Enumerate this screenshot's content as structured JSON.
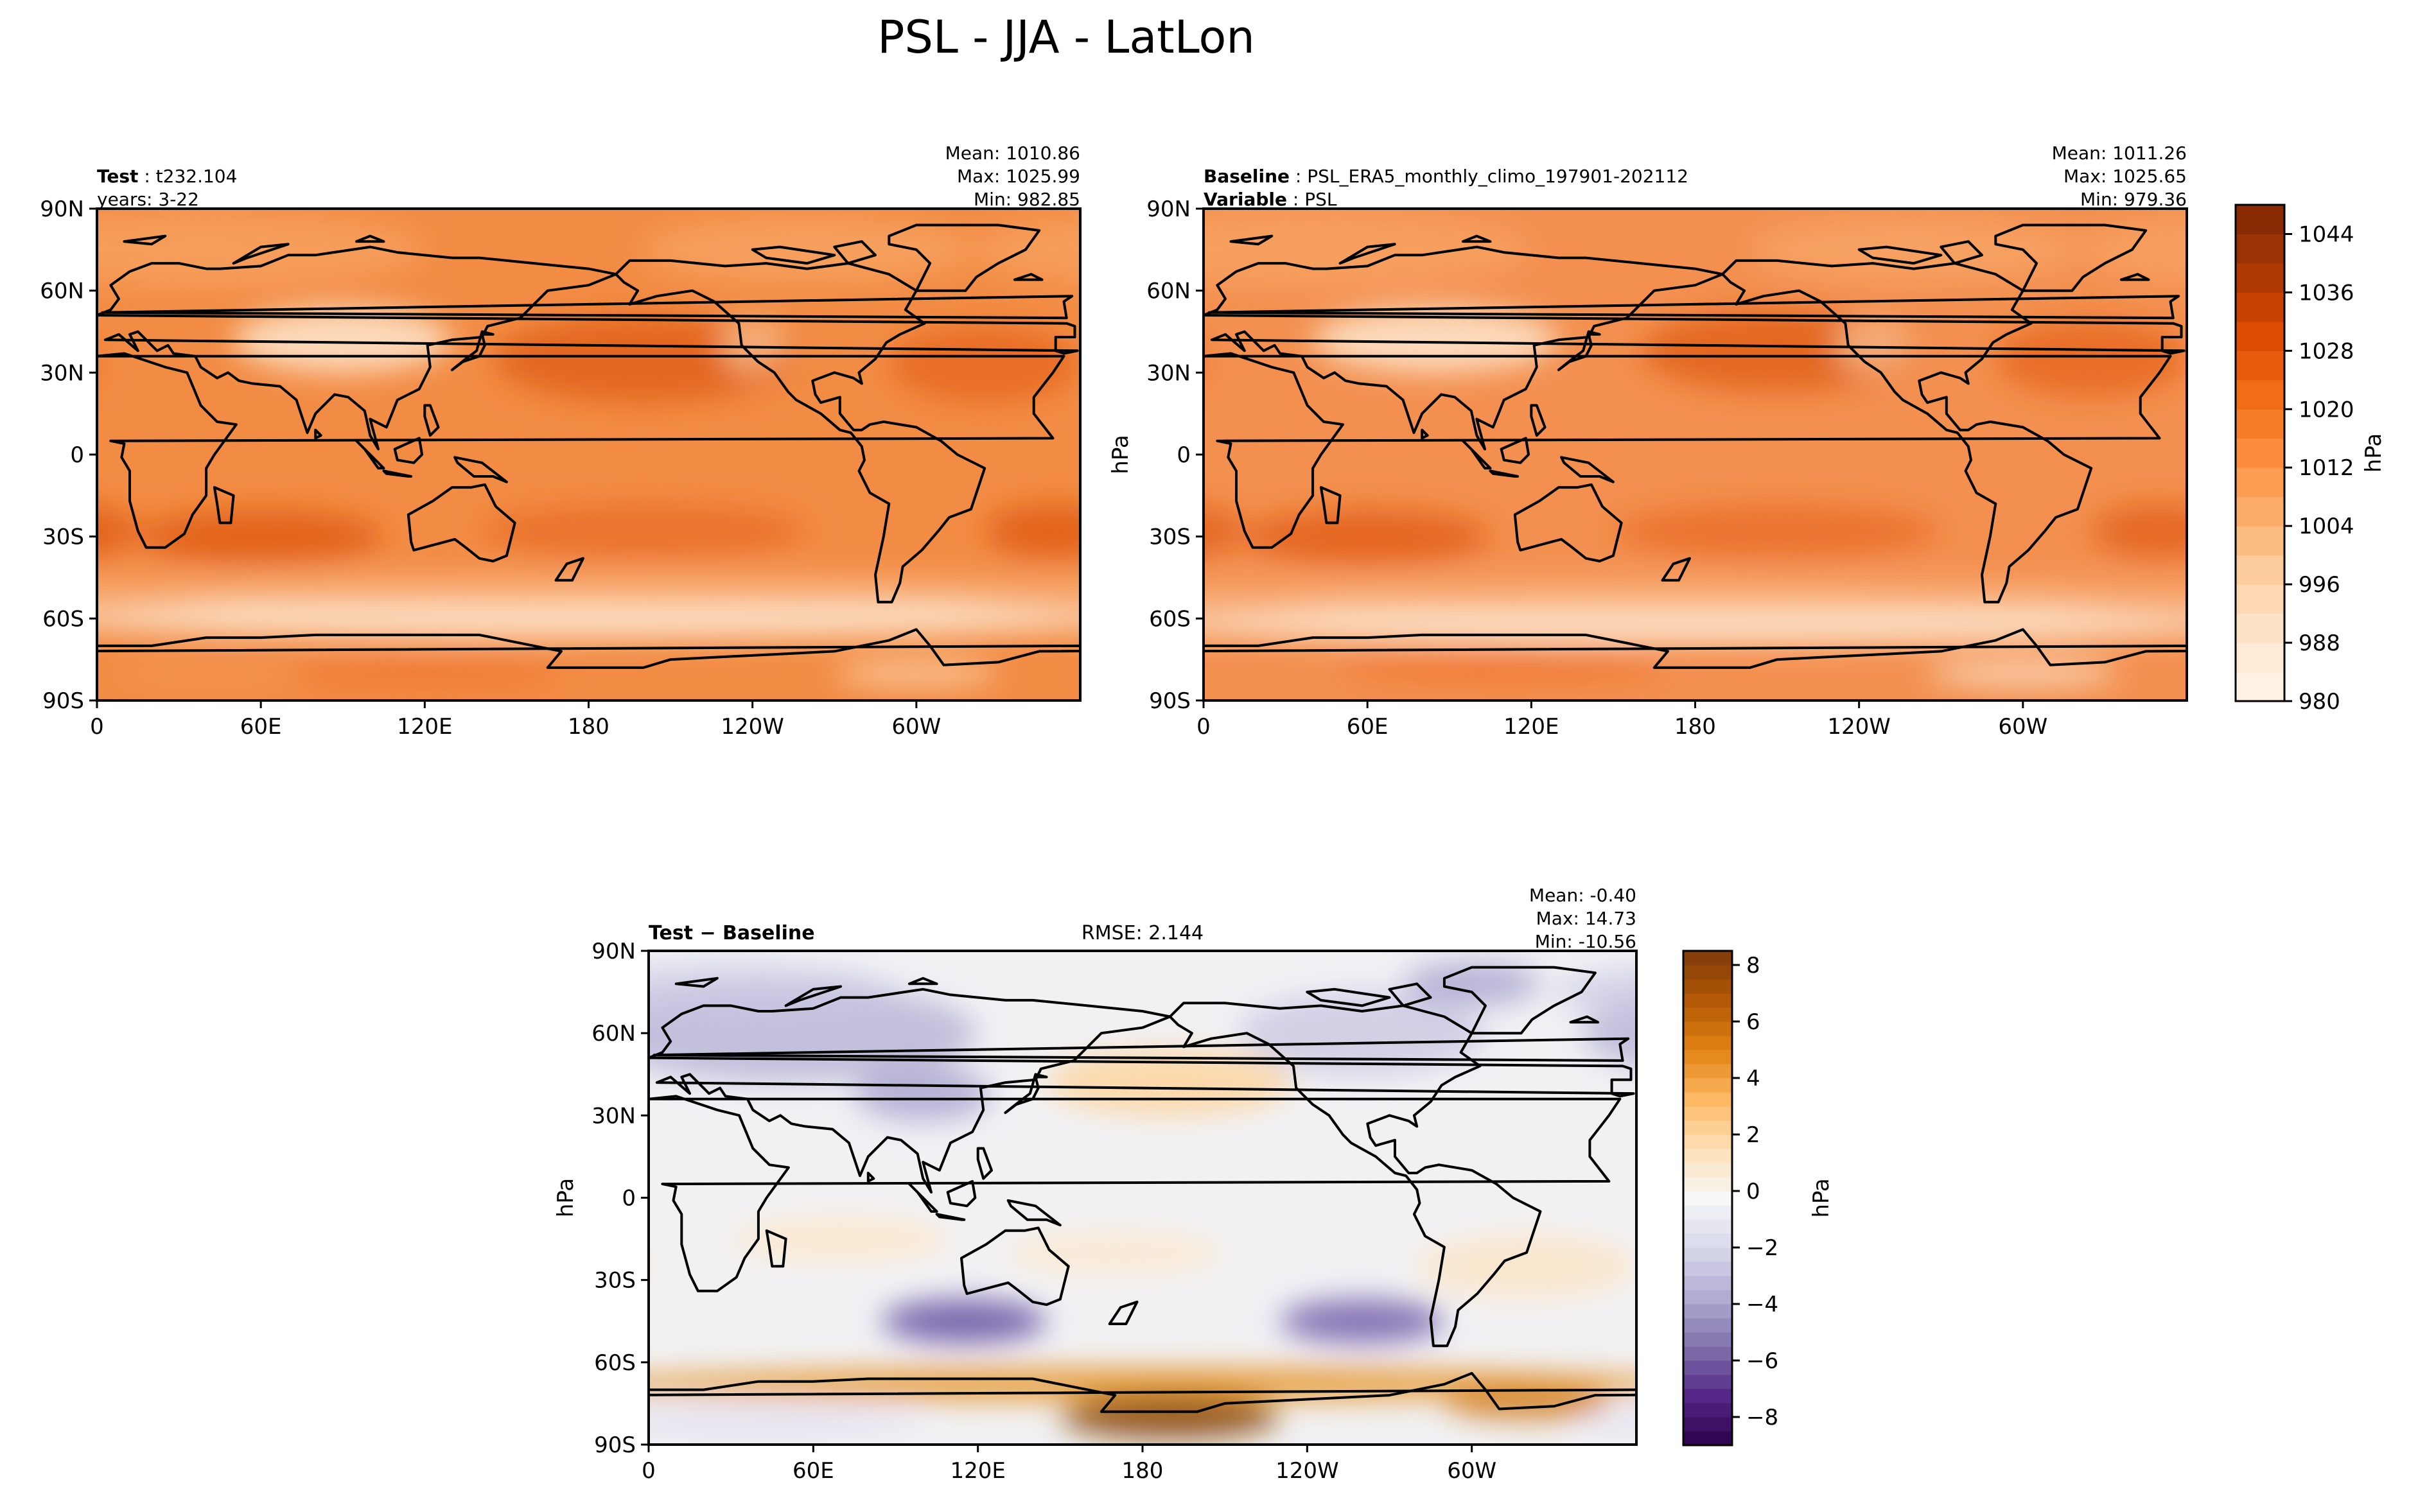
{
  "figure": {
    "title": "PSL - JJA - LatLon"
  },
  "colors": {
    "test_base": "#f28c45",
    "baseline_base": "#f39050",
    "oranges_cmap": [
      "#fff5eb",
      "#fee6ce",
      "#fdd0a2",
      "#fdae6b",
      "#fd8d3c",
      "#f16913",
      "#d94801",
      "#a63603",
      "#7f2704"
    ],
    "diff_cmap": [
      "#2d004b",
      "#542788",
      "#8073ac",
      "#b2abd2",
      "#d8daeb",
      "#f7f7f7",
      "#fee0b6",
      "#fdb863",
      "#e08214",
      "#b35806",
      "#7f3b08"
    ]
  },
  "chart_data": [
    {
      "id": "test",
      "type": "heatmap",
      "left_label_bold": "Test",
      "left_label_value": "t232.104",
      "left_label_line2": "years: 3-22",
      "stats": [
        "Mean: 1010.86",
        "Max: 1025.99",
        "Min: 982.85"
      ],
      "yticks": [
        "90N",
        "60N",
        "30N",
        "0",
        "30S",
        "60S",
        "90S"
      ],
      "xticks": [
        "0",
        "60E",
        "120E",
        "180",
        "120W",
        "60W"
      ],
      "blobs": [
        {
          "lon": 200,
          "lat": 35,
          "rx": 55,
          "ry": 16,
          "c": "#e2601a",
          "o": 0.85
        },
        {
          "lon": 325,
          "lat": 33,
          "rx": 35,
          "ry": 14,
          "c": "#e8691f",
          "o": 0.85
        },
        {
          "lon": 60,
          "lat": -30,
          "rx": 45,
          "ry": 10,
          "c": "#e05a14",
          "o": 0.8
        },
        {
          "lon": 200,
          "lat": -28,
          "rx": 60,
          "ry": 10,
          "c": "#e86a22",
          "o": 0.7
        },
        {
          "lon": 350,
          "lat": -28,
          "rx": 25,
          "ry": 10,
          "c": "#e05a14",
          "o": 0.8
        },
        {
          "lon": 90,
          "lat": 42,
          "rx": 40,
          "ry": 12,
          "c": "#fde2c6",
          "o": 0.9
        },
        {
          "lon": 240,
          "lat": 40,
          "rx": 12,
          "ry": 10,
          "c": "#fbc79a",
          "o": 0.7
        },
        {
          "lon": 180,
          "lat": -60,
          "rx": 200,
          "ry": 7,
          "c": "#fde7d0",
          "o": 0.95
        },
        {
          "lon": 180,
          "lat": -50,
          "rx": 200,
          "ry": 6,
          "c": "#fbb987",
          "o": 0.7
        },
        {
          "lon": 120,
          "lat": -80,
          "rx": 50,
          "ry": 6,
          "c": "#f07c35",
          "o": 0.9
        },
        {
          "lon": 40,
          "lat": -80,
          "rx": 35,
          "ry": 5,
          "c": "#f5954f",
          "o": 0.8
        },
        {
          "lon": 300,
          "lat": -80,
          "rx": 30,
          "ry": 5,
          "c": "#fdd0a5",
          "o": 0.8
        },
        {
          "lon": 40,
          "lat": 75,
          "rx": 80,
          "ry": 14,
          "c": "#f9a868",
          "o": 0.6
        },
        {
          "lon": 260,
          "lat": 75,
          "rx": 60,
          "ry": 12,
          "c": "#f9ab6c",
          "o": 0.6
        }
      ]
    },
    {
      "id": "baseline",
      "type": "heatmap",
      "left_label_bold": "Baseline",
      "left_label_value": "PSL_ERA5_monthly_climo_197901-202112",
      "left_label_bold2": "Variable",
      "left_label_value2": "PSL",
      "stats": [
        "Mean: 1011.26",
        "Max: 1025.65",
        "Min: 979.36"
      ],
      "yticks": [
        "90N",
        "60N",
        "30N",
        "0",
        "30S",
        "60S",
        "90S"
      ],
      "xticks": [
        "0",
        "60E",
        "120E",
        "180",
        "120W",
        "60W"
      ],
      "ylabel": "hPa",
      "blobs": [
        {
          "lon": 210,
          "lat": 38,
          "rx": 50,
          "ry": 15,
          "c": "#e2601a",
          "o": 0.85
        },
        {
          "lon": 325,
          "lat": 35,
          "rx": 35,
          "ry": 14,
          "c": "#e8691f",
          "o": 0.85
        },
        {
          "lon": 60,
          "lat": -30,
          "rx": 45,
          "ry": 10,
          "c": "#e05a14",
          "o": 0.75
        },
        {
          "lon": 210,
          "lat": -28,
          "rx": 60,
          "ry": 10,
          "c": "#e86a22",
          "o": 0.7
        },
        {
          "lon": 350,
          "lat": -28,
          "rx": 25,
          "ry": 10,
          "c": "#e05a14",
          "o": 0.7
        },
        {
          "lon": 85,
          "lat": 42,
          "rx": 45,
          "ry": 12,
          "c": "#fde2c6",
          "o": 0.9
        },
        {
          "lon": 245,
          "lat": 40,
          "rx": 14,
          "ry": 10,
          "c": "#fbc79a",
          "o": 0.7
        },
        {
          "lon": 180,
          "lat": -62,
          "rx": 200,
          "ry": 7,
          "c": "#fde7d0",
          "o": 0.95
        },
        {
          "lon": 180,
          "lat": -52,
          "rx": 200,
          "ry": 6,
          "c": "#fbb987",
          "o": 0.7
        },
        {
          "lon": 110,
          "lat": -78,
          "rx": 60,
          "ry": 6,
          "c": "#f07c35",
          "o": 0.9
        },
        {
          "lon": 300,
          "lat": -80,
          "rx": 35,
          "ry": 5,
          "c": "#fde0c5",
          "o": 0.8
        },
        {
          "lon": 40,
          "lat": 75,
          "rx": 80,
          "ry": 14,
          "c": "#f9a868",
          "o": 0.6
        },
        {
          "lon": 260,
          "lat": 75,
          "rx": 60,
          "ry": 12,
          "c": "#f9ab6c",
          "o": 0.6
        }
      ]
    },
    {
      "id": "diff",
      "type": "heatmap",
      "left_label_bold": "Test − Baseline",
      "center_label": "RMSE: 2.144",
      "stats": [
        "Mean: -0.40",
        "Max: 14.73",
        "Min: -10.56"
      ],
      "yticks": [
        "90N",
        "60N",
        "30N",
        "0",
        "30S",
        "60S",
        "90S"
      ],
      "xticks": [
        "0",
        "60E",
        "120E",
        "180",
        "120W",
        "60W"
      ],
      "ylabel": "hPa",
      "blobs": [
        {
          "lon": 50,
          "lat": 60,
          "rx": 70,
          "ry": 18,
          "c": "#b7b3d6",
          "o": 0.8
        },
        {
          "lon": 30,
          "lat": 75,
          "rx": 60,
          "ry": 10,
          "c": "#c9c6e2",
          "o": 0.7
        },
        {
          "lon": 260,
          "lat": 60,
          "rx": 45,
          "ry": 15,
          "c": "#c6c2e0",
          "o": 0.7
        },
        {
          "lon": 300,
          "lat": 78,
          "rx": 25,
          "ry": 8,
          "c": "#a9a4cf",
          "o": 0.8
        },
        {
          "lon": 100,
          "lat": 38,
          "rx": 25,
          "ry": 10,
          "c": "#a9a4cf",
          "o": 0.8
        },
        {
          "lon": 190,
          "lat": 42,
          "rx": 45,
          "ry": 12,
          "c": "#fdd6a3",
          "o": 0.9
        },
        {
          "lon": 70,
          "lat": -15,
          "rx": 40,
          "ry": 8,
          "c": "#fee7c8",
          "o": 0.8
        },
        {
          "lon": 170,
          "lat": -20,
          "rx": 40,
          "ry": 8,
          "c": "#fee7c8",
          "o": 0.7
        },
        {
          "lon": 115,
          "lat": -45,
          "rx": 30,
          "ry": 8,
          "c": "#6d5aa6",
          "o": 0.9
        },
        {
          "lon": 260,
          "lat": -45,
          "rx": 30,
          "ry": 8,
          "c": "#7a67ae",
          "o": 0.9
        },
        {
          "lon": 320,
          "lat": -25,
          "rx": 40,
          "ry": 12,
          "c": "#fde3bf",
          "o": 0.7
        },
        {
          "lon": 180,
          "lat": -68,
          "rx": 200,
          "ry": 6,
          "c": "#e6962e",
          "o": 0.9
        },
        {
          "lon": 190,
          "lat": -80,
          "rx": 40,
          "ry": 8,
          "c": "#8c4a0e",
          "o": 0.9
        },
        {
          "lon": 320,
          "lat": -75,
          "rx": 30,
          "ry": 6,
          "c": "#d07818",
          "o": 0.8
        },
        {
          "lon": 40,
          "lat": -82,
          "rx": 60,
          "ry": 5,
          "c": "#e3e1f0",
          "o": 0.9
        }
      ]
    }
  ],
  "colorbar_top": {
    "ticks": [
      "1044",
      "1036",
      "1028",
      "1020",
      "1012",
      "1004",
      "996",
      "988",
      "980"
    ],
    "tick_values": [
      1044,
      1036,
      1028,
      1020,
      1012,
      1004,
      996,
      988,
      980
    ],
    "range": [
      980,
      1048
    ],
    "label": "hPa",
    "levels": 17
  },
  "colorbar_diff": {
    "ticks": [
      "8",
      "6",
      "4",
      "2",
      "0",
      "−2",
      "−4",
      "−6",
      "−8"
    ],
    "tick_values": [
      8,
      6,
      4,
      2,
      0,
      -2,
      -4,
      -6,
      -8
    ],
    "range": [
      -9,
      8.5
    ],
    "label": "hPa",
    "levels": 35
  }
}
